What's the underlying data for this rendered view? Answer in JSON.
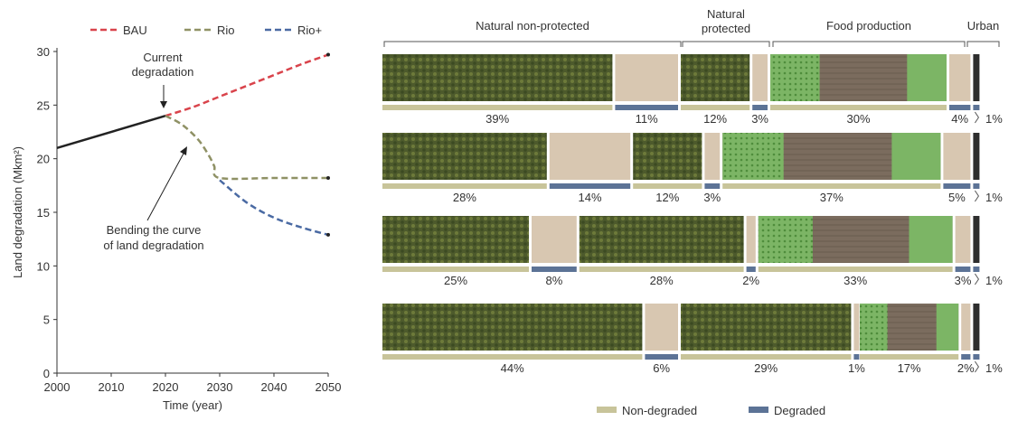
{
  "colors": {
    "bau": "#d9434b",
    "rio": "#8f9165",
    "rio_plus": "#4a6aa3",
    "history": "#222222",
    "non_degraded": "#c8c49a",
    "degraded": "#5c7396",
    "forest": "#4d5a2c",
    "degraded_land": "#d8c7b1",
    "crop_green": "#7cb565",
    "field_brown": "#7b6c5e",
    "urban": "#2e2e2e"
  },
  "chart_data": [
    {
      "type": "line",
      "ylabel": "Land degradation (Mkm²)",
      "xlabel": "Time (year)",
      "xlim": [
        2000,
        2050
      ],
      "ylim": [
        0,
        30
      ],
      "xticks": [
        2000,
        2010,
        2020,
        2030,
        2040,
        2050
      ],
      "yticks": [
        0,
        5,
        10,
        15,
        20,
        25,
        30
      ],
      "legend_position": "top",
      "series": [
        {
          "name": "BAU",
          "style": "dashed",
          "x": [
            2020,
            2025,
            2030,
            2035,
            2040,
            2045,
            2050
          ],
          "values": [
            24,
            24.8,
            25.8,
            26.8,
            27.8,
            28.8,
            29.7
          ]
        },
        {
          "name": "Rio",
          "style": "dashed",
          "x": [
            2020,
            2023,
            2026,
            2028,
            2029,
            2030,
            2040,
            2050
          ],
          "values": [
            24,
            23.2,
            21.8,
            20.3,
            19.3,
            18.2,
            18.2,
            18.2
          ]
        },
        {
          "name": "Rio+",
          "style": "dashed",
          "x": [
            2030,
            2035,
            2040,
            2045,
            2050
          ],
          "values": [
            18,
            15.9,
            14.5,
            13.6,
            12.9
          ]
        }
      ],
      "history": {
        "x": [
          2000,
          2020
        ],
        "values": [
          21,
          24
        ]
      },
      "annotations": [
        {
          "text": [
            "Current",
            "degradation"
          ],
          "x": 2020,
          "y": 24
        },
        {
          "text": [
            "Bending the curve",
            "of land degradation"
          ],
          "x": 2024,
          "y": 21
        }
      ]
    },
    {
      "type": "bar",
      "orientation": "horizontal-stacked",
      "categories": [
        "Natural non-protected",
        "Natural protected",
        "Food production",
        "Urban"
      ],
      "legend": [
        "Non-degraded",
        "Degraded"
      ],
      "rows": [
        {
          "segments": [
            {
              "group": 0,
              "status": "Non-degraded",
              "label": "39%",
              "value": 39
            },
            {
              "group": 0,
              "status": "Degraded",
              "label": "11%",
              "value": 11
            },
            {
              "group": 1,
              "status": "Non-degraded",
              "label": "12%",
              "value": 12
            },
            {
              "group": 1,
              "status": "Degraded",
              "label": "3%",
              "value": 3
            },
            {
              "group": 2,
              "status": "Non-degraded",
              "label": "30%",
              "value": 30
            },
            {
              "group": 2,
              "status": "Degraded",
              "label": "4%",
              "value": 4
            },
            {
              "group": 3,
              "status": "Degraded",
              "label": "1%",
              "value": 1
            }
          ]
        },
        {
          "segments": [
            {
              "group": 0,
              "status": "Non-degraded",
              "label": "28%",
              "value": 28
            },
            {
              "group": 0,
              "status": "Degraded",
              "label": "14%",
              "value": 14
            },
            {
              "group": 1,
              "status": "Non-degraded",
              "label": "12%",
              "value": 12
            },
            {
              "group": 1,
              "status": "Degraded",
              "label": "3%",
              "value": 3
            },
            {
              "group": 2,
              "status": "Non-degraded",
              "label": "37%",
              "value": 37
            },
            {
              "group": 2,
              "status": "Degraded",
              "label": "5%",
              "value": 5
            },
            {
              "group": 3,
              "status": "Degraded",
              "label": "1%",
              "value": 1
            }
          ]
        },
        {
          "segments": [
            {
              "group": 0,
              "status": "Non-degraded",
              "label": "25%",
              "value": 25
            },
            {
              "group": 0,
              "status": "Degraded",
              "label": "8%",
              "value": 8
            },
            {
              "group": 1,
              "status": "Non-degraded",
              "label": "28%",
              "value": 28
            },
            {
              "group": 1,
              "status": "Degraded",
              "label": "2%",
              "value": 2
            },
            {
              "group": 2,
              "status": "Non-degraded",
              "label": "33%",
              "value": 33
            },
            {
              "group": 2,
              "status": "Degraded",
              "label": "3%",
              "value": 3
            },
            {
              "group": 3,
              "status": "Degraded",
              "label": "1%",
              "value": 1
            }
          ]
        },
        {
          "segments": [
            {
              "group": 0,
              "status": "Non-degraded",
              "label": "44%",
              "value": 44
            },
            {
              "group": 0,
              "status": "Degraded",
              "label": "6%",
              "value": 6
            },
            {
              "group": 1,
              "status": "Non-degraded",
              "label": "29%",
              "value": 29
            },
            {
              "group": 1,
              "status": "Degraded",
              "label": "1%",
              "value": 1
            },
            {
              "group": 2,
              "status": "Non-degraded",
              "label": "17%",
              "value": 17
            },
            {
              "group": 2,
              "status": "Degraded",
              "label": "2%",
              "value": 2
            },
            {
              "group": 3,
              "status": "Degraded",
              "label": "1%",
              "value": 1
            }
          ]
        }
      ]
    }
  ]
}
